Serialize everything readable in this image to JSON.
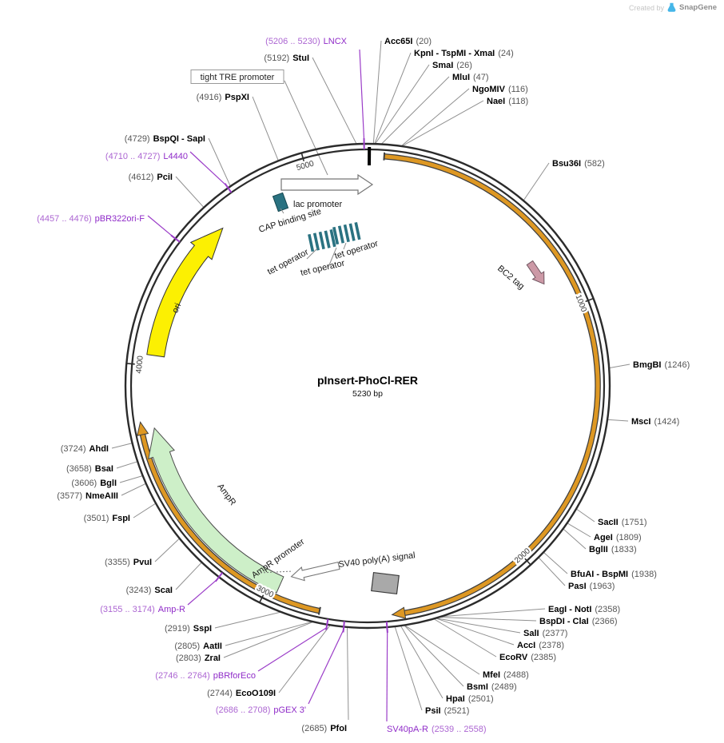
{
  "credit": {
    "prefix": "Created by",
    "brand": "SnapGene"
  },
  "plasmid": {
    "title": "pInsert-PhoCl-RER",
    "length_label": "5230 bp",
    "length_bp": 5230
  },
  "scale_ticks": [
    1000,
    2000,
    3000,
    4000,
    5000
  ],
  "colors": {
    "backbone": "#2b2b2b",
    "insert": "#DE9823",
    "ori_fill": "#FCF002",
    "ampr_fill": "#CDEFC8",
    "teal": "#2A7281",
    "bc2_fill": "#CC99A6",
    "sv40_fill": "#A9A9A9",
    "primer": "#9B3DC8",
    "leader": "#909090"
  },
  "enzymes": [
    {
      "id": "acc65i",
      "name": "Acc65I",
      "pos": "(20)",
      "site": 20,
      "order": "name-first"
    },
    {
      "id": "kpni_tspmi_xmai",
      "name": "KpnI - TspMI - XmaI",
      "pos": "(24)",
      "site": 24,
      "order": "name-first"
    },
    {
      "id": "smai",
      "name": "SmaI",
      "pos": "(26)",
      "site": 26,
      "order": "name-first"
    },
    {
      "id": "mlui",
      "name": "MluI",
      "pos": "(47)",
      "site": 47,
      "order": "name-first"
    },
    {
      "id": "ngomiv",
      "name": "NgoMIV",
      "pos": "(116)",
      "site": 116,
      "order": "name-first"
    },
    {
      "id": "naei",
      "name": "NaeI",
      "pos": "(118)",
      "site": 118,
      "order": "name-first"
    },
    {
      "id": "bsu36i",
      "name": "Bsu36I",
      "pos": "(582)",
      "site": 582,
      "order": "name-first"
    },
    {
      "id": "bmgbi",
      "name": "BmgBI",
      "pos": "(1246)",
      "site": 1246,
      "order": "name-first"
    },
    {
      "id": "msci",
      "name": "MscI",
      "pos": "(1424)",
      "site": 1424,
      "order": "name-first"
    },
    {
      "id": "sacii",
      "name": "SacII",
      "pos": "(1751)",
      "site": 1751,
      "order": "name-first"
    },
    {
      "id": "agei",
      "name": "AgeI",
      "pos": "(1809)",
      "site": 1809,
      "order": "name-first"
    },
    {
      "id": "bglii",
      "name": "BglII",
      "pos": "(1833)",
      "site": 1833,
      "order": "name-first"
    },
    {
      "id": "bfuai_bspmi",
      "name": "BfuAI - BspMI",
      "pos": "(1938)",
      "site": 1938,
      "order": "name-first"
    },
    {
      "id": "pasi",
      "name": "PasI",
      "pos": "(1963)",
      "site": 1963,
      "order": "name-first"
    },
    {
      "id": "eagi_noti",
      "name": "EagI - NotI",
      "pos": "(2358)",
      "site": 2358,
      "order": "name-first"
    },
    {
      "id": "bspdi_clai",
      "name": "BspDI - ClaI",
      "pos": "(2366)",
      "site": 2366,
      "order": "name-first"
    },
    {
      "id": "sali",
      "name": "SalI",
      "pos": "(2377)",
      "site": 2377,
      "order": "name-first"
    },
    {
      "id": "acci",
      "name": "AccI",
      "pos": "(2378)",
      "site": 2378,
      "order": "name-first"
    },
    {
      "id": "ecorv",
      "name": "EcoRV",
      "pos": "(2385)",
      "site": 2385,
      "order": "name-first"
    },
    {
      "id": "mfei",
      "name": "MfeI",
      "pos": "(2488)",
      "site": 2488,
      "order": "name-first"
    },
    {
      "id": "bsmi",
      "name": "BsmI",
      "pos": "(2489)",
      "site": 2489,
      "order": "name-first"
    },
    {
      "id": "hpai",
      "name": "HpaI",
      "pos": "(2501)",
      "site": 2501,
      "order": "name-first"
    },
    {
      "id": "psii",
      "name": "PsiI",
      "pos": "(2521)",
      "site": 2521,
      "order": "name-first"
    },
    {
      "id": "pfoi",
      "name": "PfoI",
      "pos": "(2685)",
      "site": 2685,
      "order": "pos-first"
    },
    {
      "id": "ecoo109i",
      "name": "EcoO109I",
      "pos": "(2744)",
      "site": 2744,
      "order": "pos-first"
    },
    {
      "id": "aatii",
      "name": "AatII",
      "pos": "(2805)",
      "site": 2805,
      "order": "pos-first"
    },
    {
      "id": "zrai",
      "name": "ZraI",
      "pos": "(2803)",
      "site": 2803,
      "order": "pos-first"
    },
    {
      "id": "sspi",
      "name": "SspI",
      "pos": "(2919)",
      "site": 2919,
      "order": "pos-first"
    },
    {
      "id": "scai",
      "name": "ScaI",
      "pos": "(3243)",
      "site": 3243,
      "order": "pos-first"
    },
    {
      "id": "pvui",
      "name": "PvuI",
      "pos": "(3355)",
      "site": 3355,
      "order": "pos-first"
    },
    {
      "id": "fspi",
      "name": "FspI",
      "pos": "(3501)",
      "site": 3501,
      "order": "pos-first"
    },
    {
      "id": "nmeaiii",
      "name": "NmeAIII",
      "pos": "(3577)",
      "site": 3577,
      "order": "pos-first"
    },
    {
      "id": "bgli",
      "name": "BglI",
      "pos": "(3606)",
      "site": 3606,
      "order": "pos-first"
    },
    {
      "id": "bsai",
      "name": "BsaI",
      "pos": "(3658)",
      "site": 3658,
      "order": "pos-first"
    },
    {
      "id": "ahdi",
      "name": "AhdI",
      "pos": "(3724)",
      "site": 3724,
      "order": "pos-first"
    },
    {
      "id": "pcii",
      "name": "PciI",
      "pos": "(4612)",
      "site": 4612,
      "order": "pos-first"
    },
    {
      "id": "bspqi_sapi",
      "name": "BspQI - SapI",
      "pos": "(4729)",
      "site": 4729,
      "order": "pos-first"
    },
    {
      "id": "pspxi",
      "name": "PspXI",
      "pos": "(4916)",
      "site": 4916,
      "order": "pos-first"
    },
    {
      "id": "stui",
      "name": "StuI",
      "pos": "(5192)",
      "site": 5192,
      "order": "pos-first"
    }
  ],
  "primers": [
    {
      "id": "lncx",
      "name": "LNCX",
      "range": "(5206 .. 5230)",
      "site": 5218,
      "order": "pos-first"
    },
    {
      "id": "sv40pa_r",
      "name": "SV40pA-R",
      "range": "(2539 .. 2558)",
      "site": 2548,
      "order": "name-first"
    },
    {
      "id": "pgex",
      "name": "pGEX 3'",
      "range": "(2686 .. 2708)",
      "site": 2697,
      "order": "pos-first"
    },
    {
      "id": "pbrforeco",
      "name": "pBRforEco",
      "range": "(2746 .. 2764)",
      "site": 2755,
      "order": "pos-first"
    },
    {
      "id": "amp_r",
      "name": "Amp-R",
      "range": "(3155 .. 3174)",
      "site": 3165,
      "order": "pos-first"
    },
    {
      "id": "pbr322ori_f",
      "name": "pBR322ori-F",
      "range": "(4457 .. 4476)",
      "site": 4467,
      "order": "pos-first"
    },
    {
      "id": "l4440",
      "name": "L4440",
      "range": "(4710 .. 4727)",
      "site": 4719,
      "order": "pos-first"
    }
  ],
  "inner_labels": {
    "tre": "tight TRE promoter",
    "lac": "lac promoter",
    "cap": "CAP binding site",
    "tet": "tet operator",
    "bc2": "BC2 tag",
    "ori": "ori",
    "ampr": "AmpR",
    "ampr_promoter": "AmpR promoter",
    "sv40": "SV40 poly(A) signal"
  }
}
